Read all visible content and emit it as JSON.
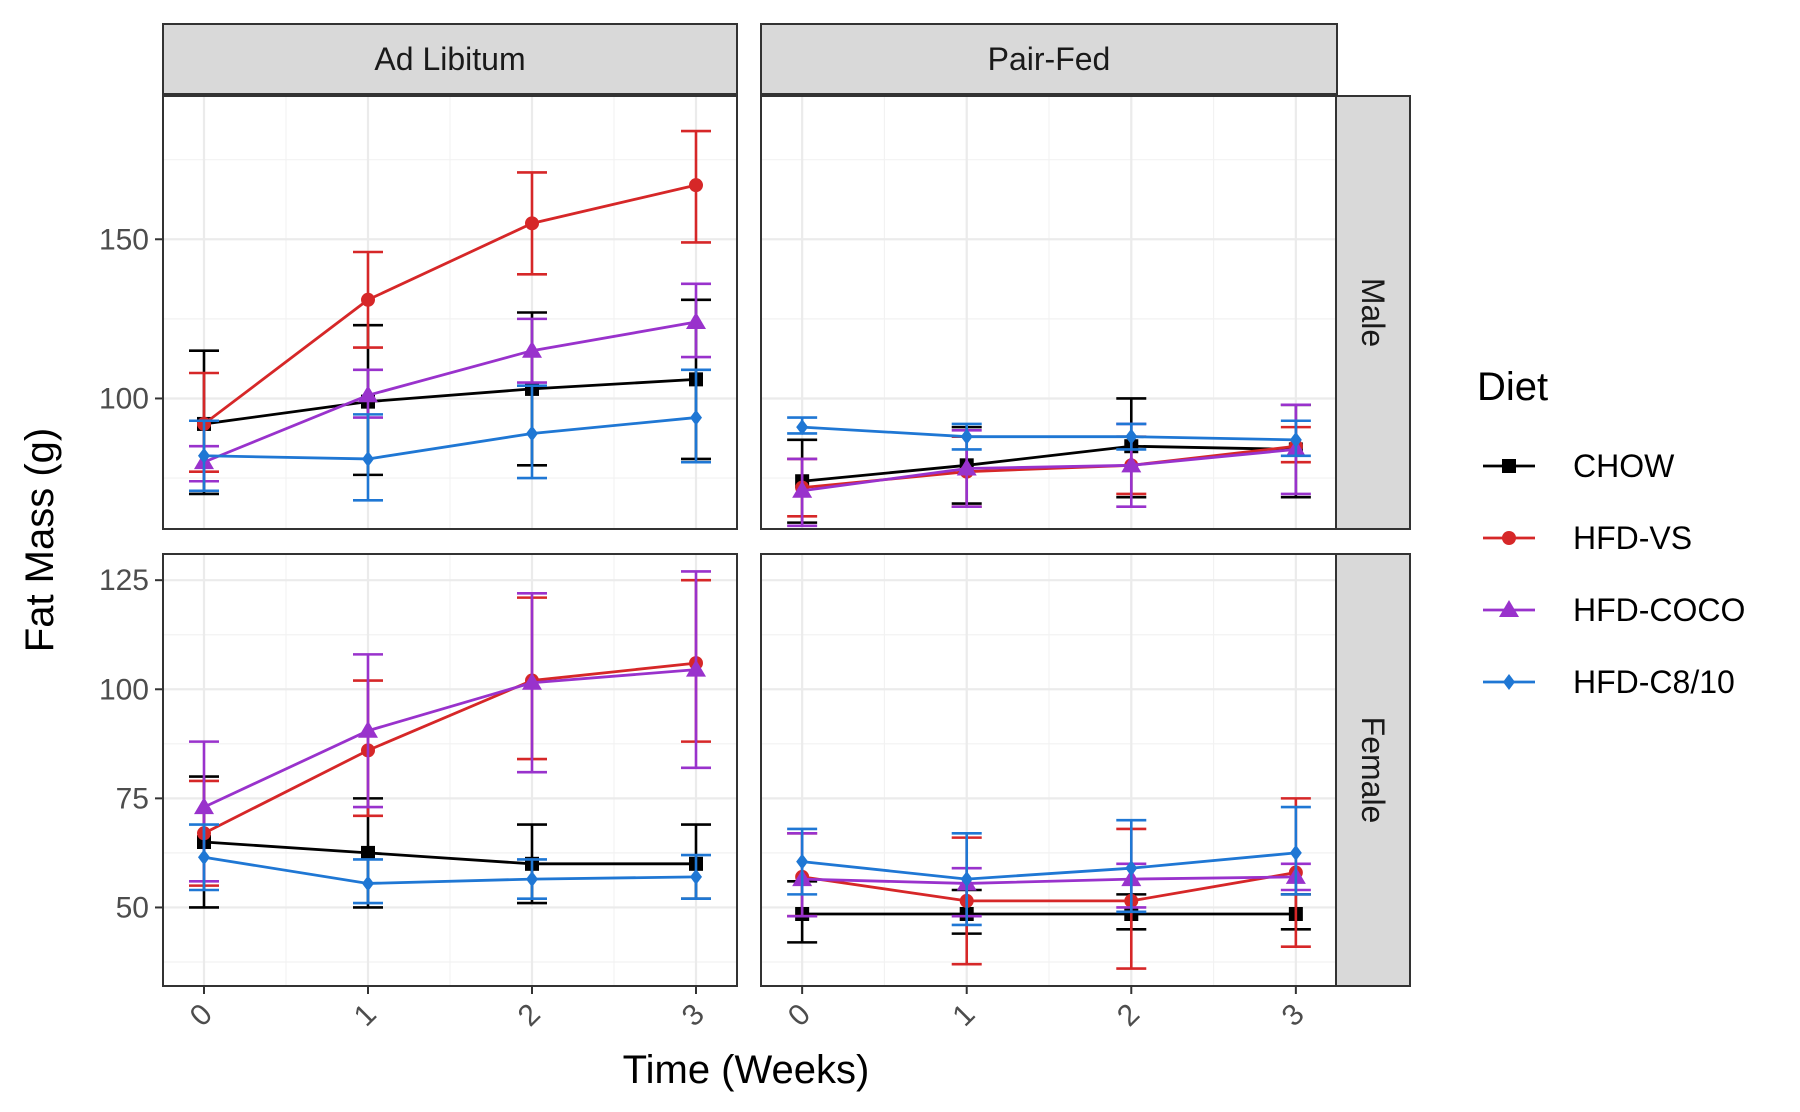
{
  "chart_data": {
    "type": "line",
    "facets": {
      "columns": [
        "Ad Libitum",
        "Pair-Fed"
      ],
      "rows": [
        "Male",
        "Female"
      ]
    },
    "xlabel": "Time (Weeks)",
    "ylabel": "Fat Mass (g)",
    "x": [
      0,
      1,
      2,
      3
    ],
    "x_tick_labels": [
      "0",
      "1",
      "2",
      "3"
    ],
    "xlim": [
      -0.25,
      3.25
    ],
    "y_axes": {
      "Male": {
        "ylim": [
          59,
          195
        ],
        "ticks": [
          100,
          150
        ],
        "tick_labels": [
          "100",
          "150"
        ]
      },
      "Female": {
        "ylim": [
          32,
          131
        ],
        "ticks": [
          50,
          75,
          100,
          125
        ],
        "tick_labels": [
          "50",
          "75",
          "100",
          "125"
        ]
      }
    },
    "grid": true,
    "legend": {
      "title": "Diet",
      "position": "right",
      "entries": [
        {
          "label": "CHOW",
          "color": "#000000",
          "marker": "square"
        },
        {
          "label": "HFD-VS",
          "color": "#d62728",
          "marker": "circle"
        },
        {
          "label": "HFD-COCO",
          "color": "#9932cc",
          "marker": "triangle"
        },
        {
          "label": "HFD-C8/10",
          "color": "#1f77d4",
          "marker": "diamond"
        }
      ]
    },
    "panels": [
      {
        "column": "Ad Libitum",
        "row": "Male",
        "series": [
          {
            "name": "CHOW",
            "values": [
              92,
              99,
              103,
              106
            ],
            "error_low": [
              70,
              76,
              79,
              81
            ],
            "error_high": [
              115,
              123,
              127,
              131
            ]
          },
          {
            "name": "HFD-VS",
            "values": [
              92,
              131,
              155,
              167
            ],
            "error_low": [
              77,
              116,
              139,
              149
            ],
            "error_high": [
              108,
              146,
              171,
              184
            ]
          },
          {
            "name": "HFD-COCO",
            "values": [
              80,
              101,
              115,
              124
            ],
            "error_low": [
              74,
              94,
              105,
              113
            ],
            "error_high": [
              85,
              109,
              125,
              136
            ]
          },
          {
            "name": "HFD-C8/10",
            "values": [
              82,
              81,
              89,
              94
            ],
            "error_low": [
              71,
              68,
              75,
              80
            ],
            "error_high": [
              93,
              95,
              104,
              109
            ]
          }
        ]
      },
      {
        "column": "Pair-Fed",
        "row": "Male",
        "series": [
          {
            "name": "CHOW",
            "values": [
              74,
              79,
              85,
              84
            ],
            "error_low": [
              61,
              67,
              69,
              69
            ],
            "error_high": [
              87,
              91,
              100,
              98
            ]
          },
          {
            "name": "HFD-VS",
            "values": [
              72,
              77,
              79,
              85
            ],
            "error_low": [
              63,
              66,
              70,
              80
            ],
            "error_high": [
              81,
              88,
              88,
              91
            ]
          },
          {
            "name": "HFD-COCO",
            "values": [
              71,
              78,
              79,
              84
            ],
            "error_low": [
              60,
              66,
              66,
              70
            ],
            "error_high": [
              81,
              90,
              92,
              98
            ]
          },
          {
            "name": "HFD-C8/10",
            "values": [
              91,
              88,
              88,
              87
            ],
            "error_low": [
              89,
              84,
              84,
              82
            ],
            "error_high": [
              94,
              92,
              92,
              93
            ]
          }
        ]
      },
      {
        "column": "Ad Libitum",
        "row": "Female",
        "series": [
          {
            "name": "CHOW",
            "values": [
              65,
              62.5,
              60,
              60
            ],
            "error_low": [
              50,
              50,
              51,
              52
            ],
            "error_high": [
              80,
              75,
              69,
              69
            ]
          },
          {
            "name": "HFD-VS",
            "values": [
              67,
              86,
              102,
              106
            ],
            "error_low": [
              55,
              71,
              84,
              88
            ],
            "error_high": [
              79,
              102,
              121,
              125
            ]
          },
          {
            "name": "HFD-COCO",
            "values": [
              73,
              90.5,
              101.5,
              104.5
            ],
            "error_low": [
              56,
              73,
              81,
              82
            ],
            "error_high": [
              88,
              108,
              122,
              127
            ]
          },
          {
            "name": "HFD-C8/10",
            "values": [
              61.5,
              55.5,
              56.5,
              57
            ],
            "error_low": [
              54,
              51,
              52,
              52
            ],
            "error_high": [
              69,
              61,
              61,
              62
            ]
          }
        ]
      },
      {
        "column": "Pair-Fed",
        "row": "Female",
        "series": [
          {
            "name": "CHOW",
            "values": [
              48.5,
              48.5,
              48.5,
              48.5
            ],
            "error_low": [
              42,
              44,
              45,
              45
            ],
            "error_high": [
              56,
              54,
              53,
              53
            ]
          },
          {
            "name": "HFD-VS",
            "values": [
              57,
              51.5,
              51.5,
              58
            ],
            "error_low": [
              48,
              37,
              36,
              41
            ],
            "error_high": [
              67,
              66,
              68,
              75
            ]
          },
          {
            "name": "HFD-COCO",
            "values": [
              56.5,
              55.5,
              56.5,
              57
            ],
            "error_low": [
              48,
              48,
              50,
              54
            ],
            "error_high": [
              67,
              59,
              60,
              60
            ]
          },
          {
            "name": "HFD-C8/10",
            "values": [
              60.5,
              56.5,
              59,
              62.5
            ],
            "error_low": [
              53,
              46,
              49,
              53
            ],
            "error_high": [
              68,
              67,
              70,
              73
            ]
          }
        ]
      }
    ]
  }
}
